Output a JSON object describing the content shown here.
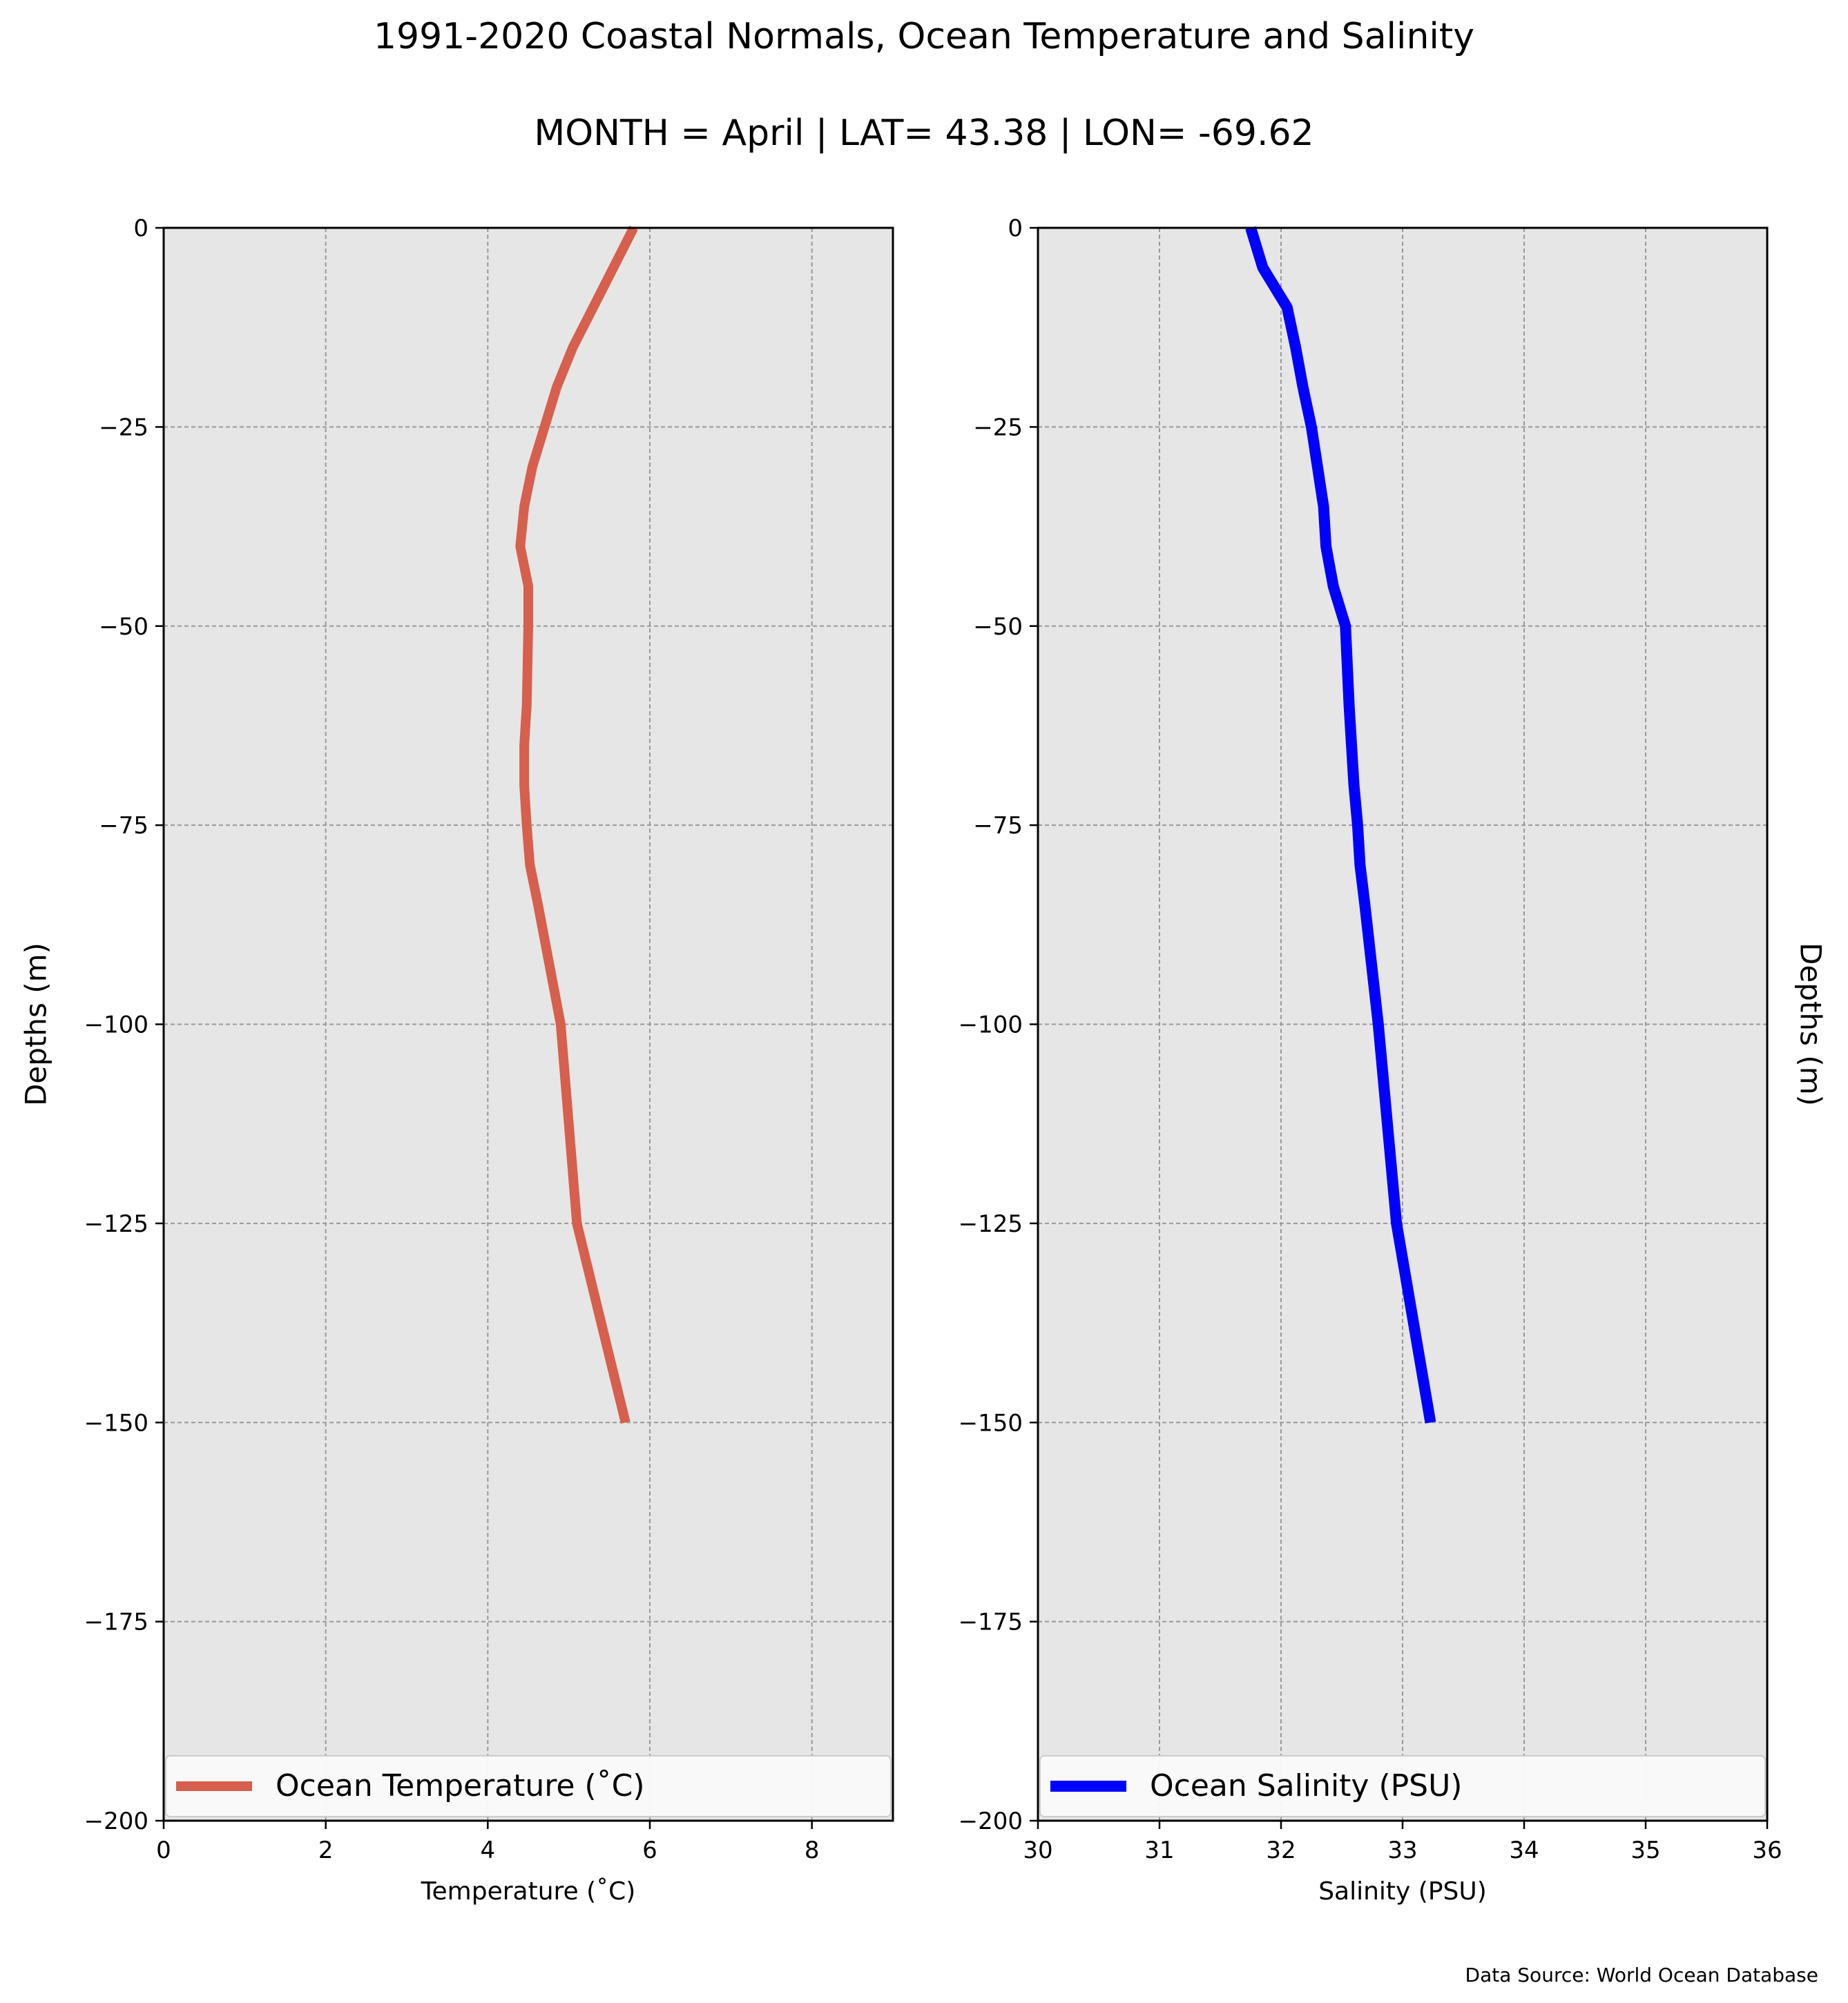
{
  "figure": {
    "title": "1991-2020 Coastal Normals, Ocean Temperature and Salinity",
    "subtitle": "MONTH = April | LAT= 43.38 | LON= -69.62",
    "source_note": "Data Source: World Ocean Database"
  },
  "colors": {
    "temperature_line": "#d65f4e",
    "salinity_line": "#0000ff",
    "plot_background": "#e6e6e6",
    "grid": "#999999"
  },
  "chart_data": [
    {
      "type": "line",
      "xlabel": "Temperature ($^\\circ$C)",
      "xlabel_display": "Temperature (˚C)",
      "ylabel": "Depths (m)",
      "xlim": [
        0,
        9
      ],
      "ylim": [
        -200,
        0
      ],
      "xticks": [
        0,
        2,
        4,
        6,
        8
      ],
      "yticks": [
        0,
        -25,
        -50,
        -75,
        -100,
        -125,
        -150,
        -175,
        -200
      ],
      "ytick_labels": [
        "0",
        "−25",
        "−50",
        "−75",
        "−100",
        "−125",
        "−150",
        "−175",
        "−200"
      ],
      "grid": true,
      "legend": "lower center",
      "series": [
        {
          "name": "Ocean Temperature (˚C)",
          "x": [
            5.8,
            5.55,
            5.3,
            5.05,
            4.85,
            4.7,
            4.55,
            4.45,
            4.4,
            4.5,
            4.5,
            4.48,
            4.45,
            4.45,
            4.48,
            4.52,
            4.62,
            4.9,
            5.1,
            5.7
          ],
          "y": [
            0,
            -5,
            -10,
            -15,
            -20,
            -25,
            -30,
            -35,
            -40,
            -45,
            -50,
            -60,
            -65,
            -70,
            -75,
            -80,
            -85,
            -100,
            -125,
            -150
          ]
        }
      ]
    },
    {
      "type": "line",
      "xlabel": "Salinity (PSU)",
      "ylabel": "Depths (m)",
      "xlim": [
        30,
        36
      ],
      "ylim": [
        -200,
        0
      ],
      "xticks": [
        30,
        31,
        32,
        33,
        34,
        35,
        36
      ],
      "yticks": [
        0,
        -25,
        -50,
        -75,
        -100,
        -125,
        -150,
        -175,
        -200
      ],
      "ytick_labels": [
        "0",
        "−25",
        "−50",
        "−75",
        "−100",
        "−125",
        "−150",
        "−175",
        "−200"
      ],
      "grid": true,
      "legend": "lower center",
      "series": [
        {
          "name": "Ocean Salinity (PSU)",
          "x": [
            31.75,
            31.85,
            32.05,
            32.12,
            32.18,
            32.25,
            32.3,
            32.35,
            32.37,
            32.43,
            32.53,
            32.56,
            32.58,
            32.6,
            32.63,
            32.65,
            32.69,
            32.8,
            32.95,
            33.23
          ],
          "y": [
            0,
            -5,
            -10,
            -15,
            -20,
            -25,
            -30,
            -35,
            -40,
            -45,
            -50,
            -60,
            -65,
            -70,
            -75,
            -80,
            -85,
            -100,
            -125,
            -150
          ]
        }
      ]
    }
  ]
}
